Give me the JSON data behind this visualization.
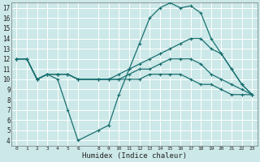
{
  "title": "",
  "xlabel": "Humidex (Indice chaleur)",
  "bg_color": "#cce8e8",
  "grid_color": "#ffffff",
  "line_color": "#1a7070",
  "xlim": [
    -0.5,
    23.5
  ],
  "ylim": [
    3.5,
    17.5
  ],
  "xticks": [
    0,
    1,
    2,
    3,
    4,
    5,
    6,
    8,
    9,
    10,
    11,
    12,
    13,
    14,
    15,
    16,
    17,
    18,
    19,
    20,
    21,
    22,
    23
  ],
  "yticks": [
    4,
    5,
    6,
    7,
    8,
    9,
    10,
    11,
    12,
    13,
    14,
    15,
    16,
    17
  ],
  "lines": [
    {
      "x": [
        0,
        1,
        2,
        3,
        4,
        5,
        6,
        8,
        9,
        10,
        11,
        12,
        13,
        14,
        15,
        16,
        17,
        18,
        19,
        20,
        21,
        22,
        23
      ],
      "y": [
        12,
        12,
        10,
        10.5,
        10,
        7,
        4,
        5,
        5.5,
        8.5,
        11,
        13.5,
        16,
        17,
        17.5,
        17,
        17.2,
        16.5,
        14,
        12.5,
        11,
        9.5,
        8.5
      ]
    },
    {
      "x": [
        0,
        1,
        2,
        3,
        4,
        5,
        6,
        8,
        9,
        10,
        11,
        12,
        13,
        14,
        15,
        16,
        17,
        18,
        19,
        20,
        21,
        22,
        23
      ],
      "y": [
        12,
        12,
        10,
        10.5,
        10.5,
        10.5,
        10,
        10,
        10,
        10.5,
        11,
        11.5,
        12,
        12.5,
        13,
        13.5,
        14,
        14,
        13,
        12.5,
        11,
        9.5,
        8.5
      ]
    },
    {
      "x": [
        0,
        1,
        2,
        3,
        4,
        5,
        6,
        8,
        9,
        10,
        11,
        12,
        13,
        14,
        15,
        16,
        17,
        18,
        19,
        20,
        21,
        22,
        23
      ],
      "y": [
        12,
        12,
        10,
        10.5,
        10.5,
        10.5,
        10,
        10,
        10,
        10,
        10.5,
        11,
        11,
        11.5,
        12,
        12,
        12,
        11.5,
        10.5,
        10,
        9.5,
        9,
        8.5
      ]
    },
    {
      "x": [
        0,
        1,
        2,
        3,
        4,
        5,
        6,
        8,
        9,
        10,
        11,
        12,
        13,
        14,
        15,
        16,
        17,
        18,
        19,
        20,
        21,
        22,
        23
      ],
      "y": [
        12,
        12,
        10,
        10.5,
        10.5,
        10.5,
        10,
        10,
        10,
        10,
        10,
        10,
        10.5,
        10.5,
        10.5,
        10.5,
        10,
        9.5,
        9.5,
        9,
        8.5,
        8.5,
        8.5
      ]
    }
  ]
}
